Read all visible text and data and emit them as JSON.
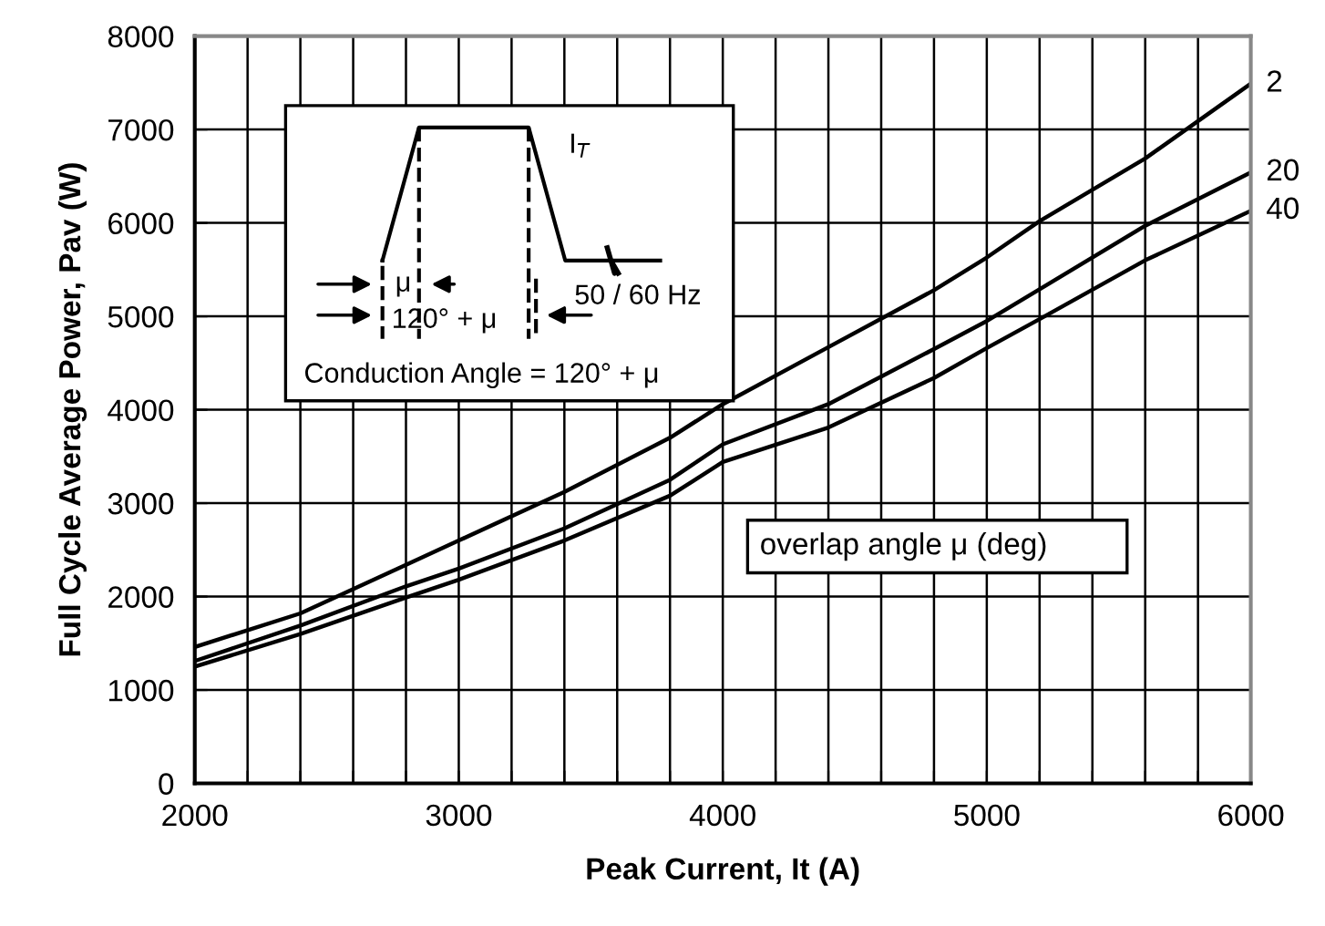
{
  "chart_data": {
    "type": "line",
    "xlabel": "Peak Current, It (A)",
    "ylabel": "Full Cycle Average Power, Pav (W)",
    "legend_title": "overlap angle μ (deg)",
    "x": [
      2000,
      2400,
      2800,
      3000,
      3400,
      3800,
      4000,
      4400,
      4800,
      5000,
      5200,
      5600,
      6000
    ],
    "series": [
      {
        "name": "2",
        "color": "#000000",
        "values": [
          1460,
          1820,
          2340,
          2600,
          3120,
          3700,
          4060,
          4670,
          5280,
          5630,
          6020,
          6690,
          7490
        ]
      },
      {
        "name": "20",
        "color": "#000000",
        "values": [
          1310,
          1690,
          2110,
          2300,
          2730,
          3250,
          3630,
          4060,
          4650,
          4950,
          5290,
          5970,
          6540
        ]
      },
      {
        "name": "40",
        "color": "#000000",
        "values": [
          1250,
          1600,
          1990,
          2180,
          2600,
          3080,
          3440,
          3810,
          4340,
          4660,
          4970,
          5600,
          6130
        ]
      }
    ],
    "xlim": [
      2000,
      6000
    ],
    "ylim": [
      0,
      8000
    ],
    "xticks": [
      2000,
      {
        "value": 2200,
        "label": null
      },
      {
        "value": 2400,
        "label": null
      },
      {
        "value": 2600,
        "label": null
      },
      {
        "value": 2800,
        "label": null
      },
      3000,
      {
        "value": 3200,
        "label": null
      },
      {
        "value": 3400,
        "label": null
      },
      {
        "value": 3600,
        "label": null
      },
      {
        "value": 3800,
        "label": null
      },
      4000,
      {
        "value": 4200,
        "label": null
      },
      {
        "value": 4400,
        "label": null
      },
      {
        "value": 4600,
        "label": null
      },
      {
        "value": 4800,
        "label": null
      },
      5000,
      {
        "value": 5200,
        "label": null
      },
      {
        "value": 5400,
        "label": null
      },
      {
        "value": 5600,
        "label": null
      },
      {
        "value": 5800,
        "label": null
      },
      6000
    ],
    "yticks": [
      0,
      1000,
      2000,
      3000,
      4000,
      5000,
      6000,
      7000,
      8000
    ],
    "grid": true,
    "legend": false,
    "marker": "none",
    "line_style": "solid",
    "annotations": [
      "I$_{T}$",
      "μ",
      "120° + μ",
      "50 / 60 Hz",
      "Conduction Angle = 120° + μ"
    ]
  }
}
